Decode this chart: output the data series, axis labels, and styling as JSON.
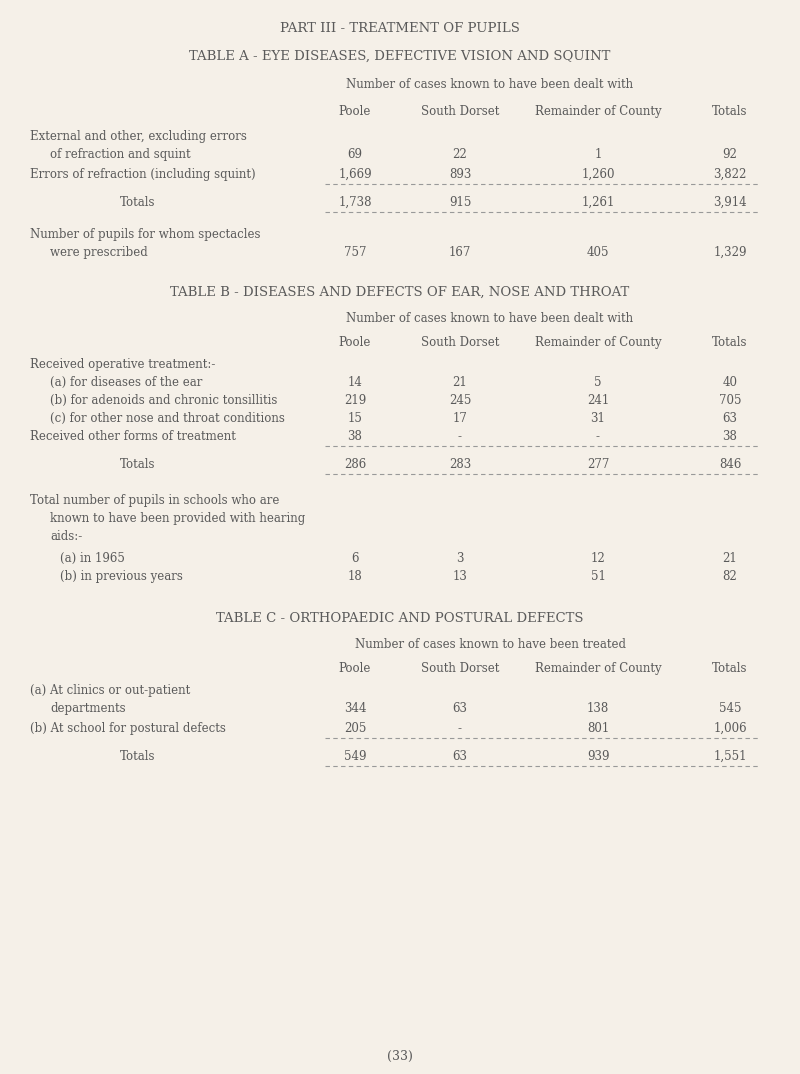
{
  "bg_color": "#f5f0e8",
  "text_color": "#5a5a5a",
  "page_title": "PART III - TREATMENT OF PUPILS",
  "table_a_title": "TABLE A - EYE DISEASES, DEFECTIVE VISION AND SQUINT",
  "table_a_subtitle": "Number of cases known to have been dealt with",
  "table_b_title": "TABLE B - DISEASES AND DEFECTS OF EAR, NOSE AND THROAT",
  "table_b_subtitle": "Number of cases known to have been dealt with",
  "table_c_title": "TABLE C - ORTHOPAEDIC AND POSTURAL DEFECTS",
  "table_c_subtitle": "Number of cases known to have been treated",
  "col_headers": [
    "Poole",
    "South Dorset",
    "Remainder of County",
    "Totals"
  ],
  "page_number": "(33)"
}
